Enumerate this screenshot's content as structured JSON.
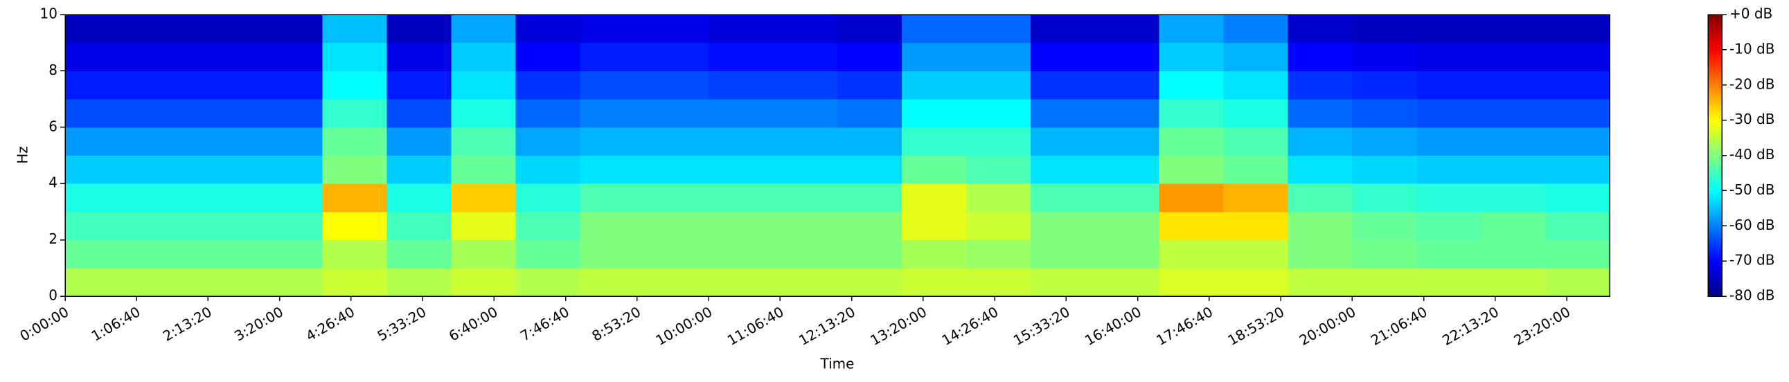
{
  "chart_data": {
    "type": "heatmap",
    "xlabel": "Time",
    "ylabel": "Hz",
    "colormap": "jet",
    "xbins": [
      0,
      3600,
      7200,
      10800,
      14400,
      18000,
      21600,
      25200,
      28800,
      32400,
      36000,
      39600,
      43200,
      46800,
      50400,
      54000,
      57600,
      61200,
      64800,
      68400,
      72000,
      75600,
      79200,
      82800,
      86400
    ],
    "ybins": [
      0,
      1,
      2,
      3,
      4,
      5,
      6,
      7,
      8,
      9,
      10
    ],
    "values": [
      [
        -36,
        -36,
        -36,
        -36,
        -34,
        -36,
        -34,
        -36,
        -35,
        -35,
        -35,
        -35,
        -35,
        -34,
        -34,
        -35,
        -35,
        -33,
        -33,
        -35,
        -35,
        -35,
        -35,
        -36
      ],
      [
        -42,
        -42,
        -42,
        -42,
        -36,
        -42,
        -37,
        -42,
        -40,
        -40,
        -40,
        -40,
        -40,
        -37,
        -38,
        -40,
        -40,
        -35,
        -35,
        -40,
        -41,
        -42,
        -42,
        -42
      ],
      [
        -45,
        -45,
        -45,
        -45,
        -30,
        -45,
        -32,
        -44,
        -40,
        -40,
        -40,
        -40,
        -40,
        -32,
        -34,
        -40,
        -40,
        -28,
        -28,
        -40,
        -42,
        -43,
        -42,
        -44
      ],
      [
        -48,
        -48,
        -48,
        -48,
        -24,
        -48,
        -26,
        -47,
        -44,
        -44,
        -44,
        -44,
        -44,
        -32,
        -36,
        -44,
        -44,
        -22,
        -24,
        -44,
        -46,
        -47,
        -47,
        -48
      ],
      [
        -54,
        -54,
        -54,
        -54,
        -40,
        -54,
        -42,
        -53,
        -52,
        -52,
        -52,
        -52,
        -52,
        -42,
        -44,
        -52,
        -52,
        -40,
        -42,
        -52,
        -53,
        -54,
        -54,
        -54
      ],
      [
        -58,
        -58,
        -58,
        -58,
        -42,
        -58,
        -44,
        -57,
        -56,
        -56,
        -56,
        -56,
        -56,
        -46,
        -46,
        -56,
        -56,
        -42,
        -44,
        -56,
        -57,
        -58,
        -58,
        -58
      ],
      [
        -64,
        -64,
        -64,
        -64,
        -46,
        -64,
        -48,
        -62,
        -60,
        -60,
        -60,
        -60,
        -61,
        -50,
        -50,
        -61,
        -61,
        -46,
        -48,
        -62,
        -63,
        -64,
        -64,
        -64
      ],
      [
        -68,
        -68,
        -68,
        -68,
        -50,
        -68,
        -52,
        -66,
        -64,
        -64,
        -65,
        -65,
        -66,
        -54,
        -54,
        -66,
        -66,
        -50,
        -52,
        -66,
        -67,
        -68,
        -68,
        -68
      ],
      [
        -72,
        -72,
        -72,
        -72,
        -52,
        -72,
        -54,
        -70,
        -68,
        -68,
        -69,
        -69,
        -70,
        -58,
        -58,
        -70,
        -70,
        -54,
        -56,
        -70,
        -71,
        -72,
        -72,
        -72
      ],
      [
        -75,
        -75,
        -75,
        -75,
        -55,
        -75,
        -57,
        -73,
        -72,
        -72,
        -73,
        -73,
        -74,
        -62,
        -62,
        -74,
        -74,
        -57,
        -60,
        -74,
        -75,
        -75,
        -75,
        -75
      ]
    ],
    "xlim": [
      0,
      86400
    ],
    "xticks": [
      {
        "value": 0,
        "label": "0:00:00"
      },
      {
        "value": 4000,
        "label": "1:06:40"
      },
      {
        "value": 8000,
        "label": "2:13:20"
      },
      {
        "value": 12000,
        "label": "3:20:00"
      },
      {
        "value": 16000,
        "label": "4:26:40"
      },
      {
        "value": 20000,
        "label": "5:33:20"
      },
      {
        "value": 24000,
        "label": "6:40:00"
      },
      {
        "value": 28000,
        "label": "7:46:40"
      },
      {
        "value": 32000,
        "label": "8:53:20"
      },
      {
        "value": 36000,
        "label": "10:00:00"
      },
      {
        "value": 40000,
        "label": "11:06:40"
      },
      {
        "value": 44000,
        "label": "12:13:20"
      },
      {
        "value": 48000,
        "label": "13:20:00"
      },
      {
        "value": 52000,
        "label": "14:26:40"
      },
      {
        "value": 56000,
        "label": "15:33:20"
      },
      {
        "value": 60000,
        "label": "16:40:00"
      },
      {
        "value": 64000,
        "label": "17:46:40"
      },
      {
        "value": 68000,
        "label": "18:53:20"
      },
      {
        "value": 72000,
        "label": "20:00:00"
      },
      {
        "value": 76000,
        "label": "21:06:40"
      },
      {
        "value": 80000,
        "label": "22:13:20"
      },
      {
        "value": 84000,
        "label": "23:20:00"
      }
    ],
    "ylim": [
      0,
      10
    ],
    "yticks": [
      0,
      2,
      4,
      6,
      8,
      10
    ],
    "clim": [
      -80,
      0
    ],
    "cticks": [
      {
        "value": 0,
        "label": "+0 dB"
      },
      {
        "value": -10,
        "label": "-10 dB"
      },
      {
        "value": -20,
        "label": "-20 dB"
      },
      {
        "value": -30,
        "label": "-30 dB"
      },
      {
        "value": -40,
        "label": "-40 dB"
      },
      {
        "value": -50,
        "label": "-50 dB"
      },
      {
        "value": -60,
        "label": "-60 dB"
      },
      {
        "value": -70,
        "label": "-70 dB"
      },
      {
        "value": -80,
        "label": "-80 dB"
      }
    ]
  }
}
